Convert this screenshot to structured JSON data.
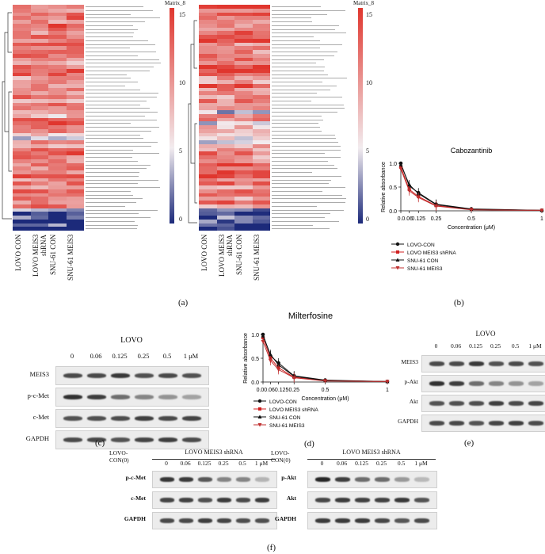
{
  "panel_labels": [
    "(a)",
    "(b)",
    "(c)",
    "(d)",
    "(e)",
    "(f)"
  ],
  "heatmap": {
    "matrix_label": "Matrix_8",
    "colorbar_ticks": [
      "15",
      "10",
      "5",
      "0"
    ],
    "colors": {
      "high": "#e0362e",
      "mid": "#f2ecef",
      "low": "#1c2a7a"
    },
    "col_labels_left": [
      "LOVO CON",
      "LOVO MEIS3 shRNA",
      "SNU-61 CON",
      "SNU-61 MEIS3"
    ]
  },
  "chart_data": [
    {
      "type": "line",
      "title": "Cabozantinib",
      "xlabel": "Concentration (μM)",
      "ylabel": "Relative absorbance",
      "x": [
        0,
        0.06,
        0.125,
        0.25,
        0.5,
        1
      ],
      "x_tick_labels": [
        "0.0.06",
        "0.125",
        "0.25",
        "0.5",
        "1"
      ],
      "ylim": [
        0,
        1
      ],
      "y_ticks": [
        "1.0",
        "0.5",
        "0.0"
      ],
      "series": [
        {
          "name": "LOVO-CON",
          "values": [
            1.0,
            0.52,
            0.38,
            0.14,
            0.04,
            0.01
          ]
        },
        {
          "name": "LOVO MEIS3 shRNA",
          "values": [
            0.92,
            0.45,
            0.3,
            0.11,
            0.03,
            0.01
          ]
        },
        {
          "name": "SNU-61 CON",
          "values": [
            0.97,
            0.55,
            0.36,
            0.13,
            0.03,
            0.01
          ]
        },
        {
          "name": "SNU-61 MEIS3",
          "values": [
            0.88,
            0.42,
            0.28,
            0.1,
            0.02,
            0.01
          ]
        }
      ]
    },
    {
      "type": "line",
      "title": "Milterfosine",
      "xlabel": "Concentration (μM)",
      "ylabel": "Relative absorbance",
      "x": [
        0,
        0.06,
        0.125,
        0.25,
        0.5,
        1
      ],
      "x_tick_labels": [
        "0.00.060.1250.25",
        "0.5",
        "1"
      ],
      "ylim": [
        0,
        1
      ],
      "y_ticks": [
        "1.0",
        "0.5",
        "0.0"
      ],
      "series": [
        {
          "name": "LOVO-CON",
          "values": [
            1.0,
            0.55,
            0.4,
            0.13,
            0.04,
            0.01
          ]
        },
        {
          "name": "LOVO MEIS3 shRNA",
          "values": [
            0.93,
            0.5,
            0.3,
            0.1,
            0.03,
            0.01
          ]
        },
        {
          "name": "SNU-61 CON",
          "values": [
            0.97,
            0.58,
            0.36,
            0.12,
            0.03,
            0.01
          ]
        },
        {
          "name": "SNU-61 MEIS3",
          "values": [
            0.85,
            0.45,
            0.26,
            0.09,
            0.02,
            0.01
          ]
        }
      ]
    }
  ],
  "series_styles": [
    {
      "color": "#111111",
      "marker": "circle"
    },
    {
      "color": "#d02020",
      "marker": "square"
    },
    {
      "color": "#111111",
      "marker": "triangle"
    },
    {
      "color": "#c03030",
      "marker": "invtriangle"
    }
  ],
  "blot_c": {
    "group": "LOVO",
    "concentrations": [
      "0",
      "0.06",
      "0.125",
      "0.25",
      "0.5",
      "1 μM"
    ],
    "rows": [
      "MEIS3",
      "p-c-Met",
      "c-Met",
      "GAPDH"
    ]
  },
  "blot_e": {
    "group": "LOVO",
    "concentrations": [
      "0",
      "0.06",
      "0.125",
      "0.25",
      "0.5",
      "1 μM"
    ],
    "rows": [
      "MEIS3",
      "p-Akt",
      "Akt",
      "GAPDH"
    ]
  },
  "blot_f_left": {
    "control": "LOVO-CON(0)",
    "group": "LOVO MEIS3 shRNA",
    "concentrations": [
      "0",
      "0.06",
      "0.125",
      "0.25",
      "0.5",
      "1 μM"
    ],
    "rows": [
      "p-c-Met",
      "c-Met",
      "GAPDH"
    ]
  },
  "blot_f_right": {
    "control": "LOVO-CON(0)",
    "group": "LOVO MEIS3 shRNA",
    "concentrations": [
      "0",
      "0.06",
      "0.125",
      "0.25",
      "0.5",
      "1 μM"
    ],
    "rows": [
      "p-Akt",
      "Akt",
      "GAPDH"
    ]
  }
}
